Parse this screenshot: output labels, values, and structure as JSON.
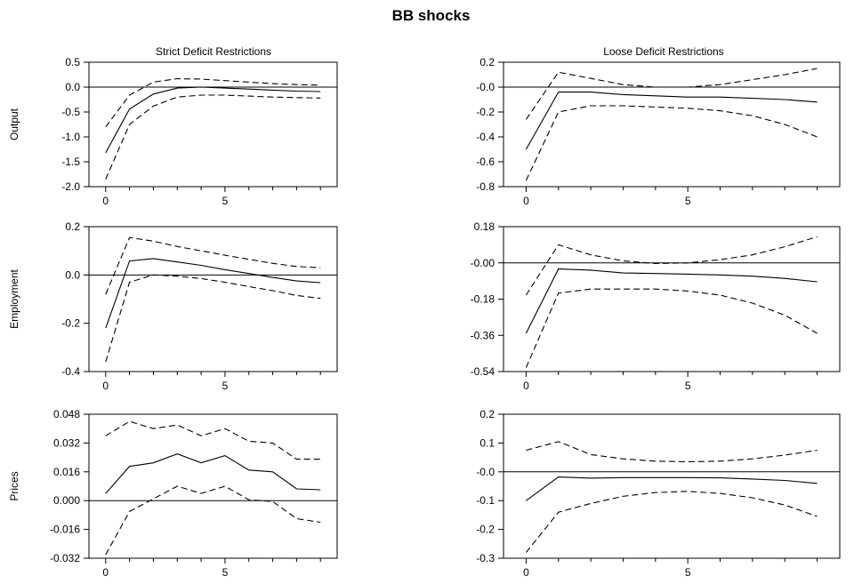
{
  "figure": {
    "title": "BB shocks",
    "columns": [
      "Strict Deficit Restrictions",
      "Loose Deficit Restrictions"
    ],
    "rows": [
      "Output",
      "Employment",
      "Prices"
    ]
  },
  "chart_data": [
    {
      "type": "line",
      "column": "Strict Deficit Restrictions",
      "row": "Output",
      "x": [
        0,
        1,
        2,
        3,
        4,
        5,
        6,
        7,
        8,
        9
      ],
      "xlim": [
        -0.7,
        9.7
      ],
      "xticks": [
        0,
        5
      ],
      "xtick_labels": [
        "0",
        "5"
      ],
      "ylim": [
        -2.0,
        0.5
      ],
      "yticks": [
        0.5,
        0.0,
        -0.5,
        -1.0,
        -1.5,
        -2.0
      ],
      "ytick_labels": [
        "0.5",
        "0.0",
        "-0.5",
        "-1.0",
        "-1.5",
        "-2.0"
      ],
      "zero_line": true,
      "series": [
        {
          "style": "solid",
          "values": [
            -1.32,
            -0.44,
            -0.14,
            -0.02,
            0.0,
            -0.02,
            -0.04,
            -0.06,
            -0.08,
            -0.09
          ]
        },
        {
          "style": "dashed",
          "values": [
            -0.8,
            -0.16,
            0.1,
            0.17,
            0.16,
            0.13,
            0.1,
            0.07,
            0.05,
            0.04
          ]
        },
        {
          "style": "dashed",
          "values": [
            -1.85,
            -0.75,
            -0.38,
            -0.2,
            -0.16,
            -0.16,
            -0.18,
            -0.2,
            -0.21,
            -0.22
          ]
        }
      ]
    },
    {
      "type": "line",
      "column": "Loose Deficit Restrictions",
      "row": "Output",
      "x": [
        0,
        1,
        2,
        3,
        4,
        5,
        6,
        7,
        8,
        9
      ],
      "xlim": [
        -0.7,
        9.7
      ],
      "xticks": [
        0,
        5
      ],
      "xtick_labels": [
        "0",
        "5"
      ],
      "ylim": [
        -0.8,
        0.2
      ],
      "yticks": [
        0.2,
        0.0,
        -0.2,
        -0.4,
        -0.6,
        -0.8
      ],
      "ytick_labels": [
        "0.2",
        "-0.0",
        "-0.2",
        "-0.4",
        "-0.6",
        "-0.8"
      ],
      "zero_line": true,
      "series": [
        {
          "style": "solid",
          "values": [
            -0.5,
            -0.04,
            -0.04,
            -0.06,
            -0.07,
            -0.08,
            -0.08,
            -0.09,
            -0.1,
            -0.12
          ]
        },
        {
          "style": "dashed",
          "values": [
            -0.26,
            0.12,
            0.07,
            0.02,
            0.0,
            0.0,
            0.02,
            0.06,
            0.1,
            0.15
          ]
        },
        {
          "style": "dashed",
          "values": [
            -0.75,
            -0.2,
            -0.15,
            -0.15,
            -0.16,
            -0.17,
            -0.19,
            -0.23,
            -0.3,
            -0.4
          ]
        }
      ]
    },
    {
      "type": "line",
      "column": "Strict Deficit Restrictions",
      "row": "Employment",
      "x": [
        0,
        1,
        2,
        3,
        4,
        5,
        6,
        7,
        8,
        9
      ],
      "xlim": [
        -0.7,
        9.7
      ],
      "xticks": [
        0,
        5
      ],
      "xtick_labels": [
        "0",
        "5"
      ],
      "ylim": [
        -0.4,
        0.2
      ],
      "yticks": [
        0.2,
        0.0,
        -0.2,
        -0.4
      ],
      "ytick_labels": [
        "0.2",
        "0.0",
        "-0.2",
        "-0.4"
      ],
      "zero_line": true,
      "series": [
        {
          "style": "solid",
          "values": [
            -0.22,
            0.058,
            0.068,
            0.054,
            0.04,
            0.022,
            0.006,
            -0.01,
            -0.025,
            -0.032
          ]
        },
        {
          "style": "dashed",
          "values": [
            -0.08,
            0.155,
            0.14,
            0.118,
            0.1,
            0.082,
            0.065,
            0.048,
            0.035,
            0.03
          ]
        },
        {
          "style": "dashed",
          "values": [
            -0.36,
            -0.03,
            0.0,
            -0.005,
            -0.015,
            -0.03,
            -0.048,
            -0.065,
            -0.085,
            -0.097
          ]
        }
      ]
    },
    {
      "type": "line",
      "column": "Loose Deficit Restrictions",
      "row": "Employment",
      "x": [
        0,
        1,
        2,
        3,
        4,
        5,
        6,
        7,
        8,
        9
      ],
      "xlim": [
        -0.7,
        9.7
      ],
      "xticks": [
        0,
        5
      ],
      "xtick_labels": [
        "0",
        "5"
      ],
      "ylim": [
        -0.54,
        0.18
      ],
      "yticks": [
        0.18,
        0.0,
        -0.18,
        -0.36,
        -0.54
      ],
      "ytick_labels": [
        "0.18",
        "-0.00",
        "-0.18",
        "-0.36",
        "-0.54"
      ],
      "zero_line": true,
      "series": [
        {
          "style": "solid",
          "values": [
            -0.35,
            -0.03,
            -0.036,
            -0.05,
            -0.053,
            -0.056,
            -0.06,
            -0.066,
            -0.077,
            -0.094
          ]
        },
        {
          "style": "dashed",
          "values": [
            -0.16,
            0.09,
            0.04,
            0.01,
            -0.003,
            0.0,
            0.016,
            0.04,
            0.08,
            0.13
          ]
        },
        {
          "style": "dashed",
          "values": [
            -0.52,
            -0.15,
            -0.13,
            -0.13,
            -0.13,
            -0.14,
            -0.16,
            -0.2,
            -0.26,
            -0.35
          ]
        }
      ]
    },
    {
      "type": "line",
      "column": "Strict Deficit Restrictions",
      "row": "Prices",
      "x": [
        0,
        1,
        2,
        3,
        4,
        5,
        6,
        7,
        8,
        9
      ],
      "xlim": [
        -0.7,
        9.7
      ],
      "xticks": [
        0,
        5
      ],
      "xtick_labels": [
        "0",
        "5"
      ],
      "ylim": [
        -0.032,
        0.048
      ],
      "yticks": [
        0.048,
        0.032,
        0.016,
        0.0,
        -0.016,
        -0.032
      ],
      "ytick_labels": [
        "0.048",
        "0.032",
        "0.016",
        "0.000",
        "-0.016",
        "-0.032"
      ],
      "zero_line": true,
      "series": [
        {
          "style": "solid",
          "values": [
            0.004,
            0.019,
            0.021,
            0.026,
            0.021,
            0.025,
            0.017,
            0.016,
            0.0065,
            0.006
          ]
        },
        {
          "style": "dashed",
          "values": [
            0.036,
            0.044,
            0.04,
            0.042,
            0.036,
            0.04,
            0.033,
            0.032,
            0.023,
            0.023
          ]
        },
        {
          "style": "dashed",
          "values": [
            -0.03,
            -0.006,
            0.001,
            0.008,
            0.004,
            0.008,
            0.0005,
            -0.0005,
            -0.01,
            -0.012
          ]
        }
      ]
    },
    {
      "type": "line",
      "column": "Loose Deficit Restrictions",
      "row": "Prices",
      "x": [
        0,
        1,
        2,
        3,
        4,
        5,
        6,
        7,
        8,
        9
      ],
      "xlim": [
        -0.7,
        9.7
      ],
      "xticks": [
        0,
        5
      ],
      "xtick_labels": [
        "0",
        "5"
      ],
      "ylim": [
        -0.3,
        0.2
      ],
      "yticks": [
        0.2,
        0.1,
        0.0,
        -0.1,
        -0.2,
        -0.3
      ],
      "ytick_labels": [
        "0.2",
        "0.1",
        "-0.0",
        "-0.1",
        "-0.2",
        "-0.3"
      ],
      "zero_line": true,
      "series": [
        {
          "style": "solid",
          "values": [
            -0.1,
            -0.018,
            -0.022,
            -0.02,
            -0.02,
            -0.02,
            -0.021,
            -0.025,
            -0.03,
            -0.04
          ]
        },
        {
          "style": "dashed",
          "values": [
            0.075,
            0.105,
            0.06,
            0.045,
            0.037,
            0.035,
            0.037,
            0.045,
            0.058,
            0.075
          ]
        },
        {
          "style": "dashed",
          "values": [
            -0.28,
            -0.14,
            -0.11,
            -0.085,
            -0.072,
            -0.068,
            -0.075,
            -0.09,
            -0.115,
            -0.155
          ]
        }
      ]
    }
  ]
}
